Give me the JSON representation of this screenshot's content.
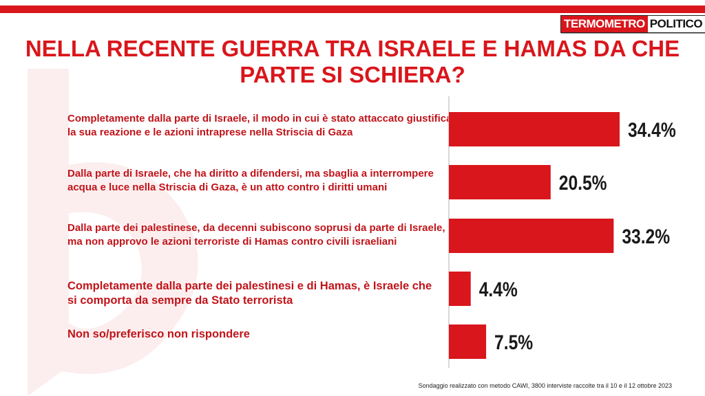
{
  "brand": {
    "part1": "TERMOMETRO",
    "part2": "POLITICO"
  },
  "title": "NELLA RECENTE GUERRA TRA ISRAELE E HAMAS DA CHE PARTE SI SCHIERA?",
  "footer": "Sondaggio realizzato con metodo CAWI, 3800 interviste raccolte tra il 10 e il 12 ottobre 2023",
  "colors": {
    "accent": "#d9161c",
    "bar": "#d9161c",
    "value_text": "#1a1a1a"
  },
  "chart_data": {
    "type": "bar",
    "orientation": "horizontal",
    "categories": [
      "Completamente dalla parte di Israele, il modo in cui è stato attaccato giustifica la sua reazione e le azioni intraprese nella Striscia di Gaza",
      "Dalla parte di Israele, che ha diritto a difendersi, ma sbaglia a interrompere acqua e luce nella Striscia di Gaza, è un atto contro i diritti umani",
      "Dalla parte dei palestinese, da decenni subiscono soprusi da parte di Israele, ma non approvo le azioni terroriste di Hamas contro civili israeliani",
      "Completamente dalla parte dei palestinesi e di Hamas, è Israele che si comporta da sempre da Stato terrorista",
      "Non so/preferisco non rispondere"
    ],
    "values": [
      34.4,
      20.5,
      33.2,
      4.4,
      7.5
    ],
    "value_labels": [
      "34.4%",
      "20.5%",
      "33.2%",
      "4.4%",
      "7.5%"
    ],
    "unit": "%",
    "xlim": [
      0,
      40
    ]
  }
}
